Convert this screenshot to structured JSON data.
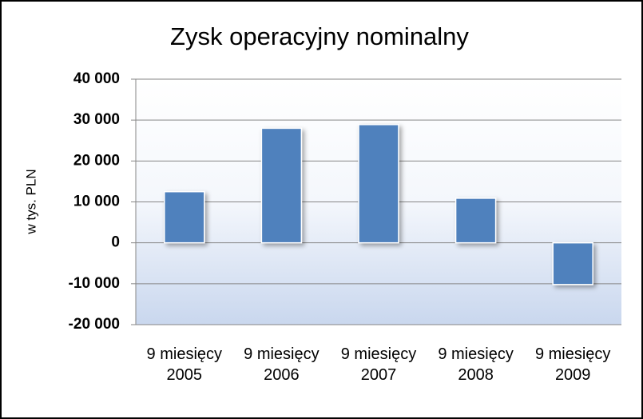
{
  "chart_data": {
    "type": "bar",
    "title": "Zysk operacyjny nominalny",
    "y_label": "w tys. PLN",
    "categories": [
      "9 miesięcy 2005",
      "9 miesięcy 2006",
      "9 miesięcy 2007",
      "9 miesięcy 2008",
      "9 miesięcy 2009"
    ],
    "values": [
      12500,
      28000,
      28900,
      10900,
      -10200
    ],
    "color": "#4f81bd",
    "ylim": [
      -20000,
      40000
    ],
    "yticks": [
      {
        "value": -20000,
        "label": "-20 000"
      },
      {
        "value": -10000,
        "label": "-10 000"
      },
      0,
      {
        "value": 10000,
        "label": "10 000"
      },
      {
        "value": 20000,
        "label": "20 000"
      },
      {
        "value": 30000,
        "label": "30 000"
      },
      {
        "value": 40000,
        "label": "40 000"
      }
    ],
    "grid": true
  }
}
